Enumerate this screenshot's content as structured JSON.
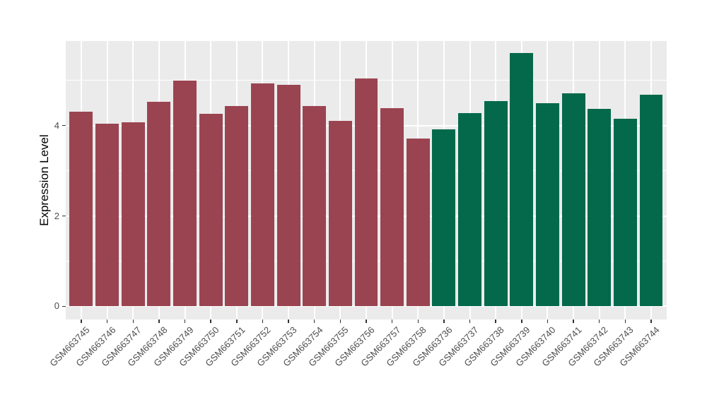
{
  "figure": {
    "ylabel": "Expression Level"
  },
  "chart_data": {
    "type": "bar",
    "title": "",
    "xlabel": "",
    "ylabel": "Expression Level",
    "ylim": [
      0,
      5.88
    ],
    "yticks": [
      0,
      2,
      4
    ],
    "minor_gridlines": [
      1,
      3,
      5
    ],
    "grid": true,
    "legend_position": "none",
    "panel_background": "#EBEBEB",
    "gridline_color": "#FFFFFF",
    "axis_text_color": "#4D4D4D",
    "group_colors": [
      "#9B4451",
      "#04694B"
    ],
    "categories": [
      "GSM663745",
      "GSM663746",
      "GSM663747",
      "GSM663748",
      "GSM663749",
      "GSM663750",
      "GSM663751",
      "GSM663752",
      "GSM663753",
      "GSM663754",
      "GSM663755",
      "GSM663756",
      "GSM663757",
      "GSM663758",
      "GSM663736",
      "GSM663737",
      "GSM663738",
      "GSM663739",
      "GSM663740",
      "GSM663741",
      "GSM663742",
      "GSM663743",
      "GSM663744"
    ],
    "values": [
      4.31,
      4.05,
      4.07,
      4.52,
      5.0,
      4.26,
      4.44,
      4.93,
      4.9,
      4.44,
      4.1,
      5.05,
      4.38,
      3.72,
      3.92,
      4.27,
      4.55,
      5.61,
      4.49,
      4.72,
      4.37,
      4.15,
      4.68
    ],
    "bar_groups": [
      0,
      0,
      0,
      0,
      0,
      0,
      0,
      0,
      0,
      0,
      0,
      0,
      0,
      0,
      1,
      1,
      1,
      1,
      1,
      1,
      1,
      1,
      1
    ]
  }
}
